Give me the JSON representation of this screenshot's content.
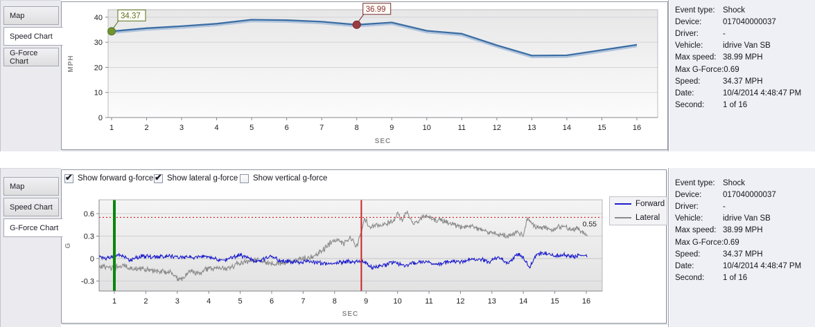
{
  "tabs": [
    "Map",
    "Speed Chart",
    "G-Force Chart"
  ],
  "top_panel": {
    "selected_tab": "Speed Chart"
  },
  "bottom_panel": {
    "selected_tab": "G-Force Chart"
  },
  "event_info": {
    "rows": [
      {
        "label": "Event type:",
        "value": "Shock"
      },
      {
        "label": "Device:",
        "value": "017040000037"
      },
      {
        "label": "Driver:",
        "value": "-"
      },
      {
        "label": "Vehicle:",
        "value": "idrive Van SB"
      },
      {
        "label": "Max speed:",
        "value": "38.99 MPH"
      },
      {
        "label": "Max G-Force:",
        "value": "0.69"
      },
      {
        "label": "Speed:",
        "value": "34.37 MPH"
      },
      {
        "label": "Date:",
        "value": "10/4/2014 4:48:47 PM"
      },
      {
        "label": "Second:",
        "value": "1 of 16"
      }
    ]
  },
  "gforce_controls": {
    "checkboxes": [
      {
        "label": "Show forward g-force",
        "checked": true
      },
      {
        "label": "Show lateral g-force",
        "checked": true
      },
      {
        "label": "Show vertical g-force",
        "checked": false
      }
    ]
  },
  "chart_data": [
    {
      "type": "line",
      "name": "speed-chart",
      "xlabel": "SEC",
      "ylabel": "MPH",
      "x": [
        1,
        2,
        3,
        4,
        5,
        6,
        7,
        8,
        9,
        10,
        11,
        12,
        13,
        14,
        15,
        16
      ],
      "values": [
        34.37,
        35.6,
        36.4,
        37.4,
        38.99,
        38.8,
        38.2,
        36.99,
        37.9,
        34.6,
        33.4,
        28.8,
        24.7,
        24.8,
        26.9,
        29.0
      ],
      "yticks": [
        0,
        10,
        20,
        30,
        40
      ],
      "ylim": [
        0,
        43
      ],
      "grid": "horizontal",
      "line_color": "#3a6da3",
      "shadow_color": "#a7bdd9",
      "annotations": [
        {
          "x": 1,
          "y": 34.37,
          "label": "34.37",
          "dot_color": "#71942f",
          "edge_color": "#55711f",
          "text_color": "#5d6e22"
        },
        {
          "x": 8,
          "y": 36.99,
          "label": "36.99",
          "dot_color": "#9e3a42",
          "edge_color": "#73262d",
          "text_color": "#8c3038"
        }
      ]
    },
    {
      "type": "line",
      "name": "gforce-chart",
      "xlabel": "SEC",
      "ylabel": "G",
      "xticks": [
        1,
        2,
        3,
        4,
        5,
        6,
        7,
        8,
        9,
        10,
        11,
        12,
        13,
        14,
        15,
        16
      ],
      "yticks": [
        -0.3,
        0,
        0.3,
        0.6
      ],
      "ylim": [
        -0.43,
        0.79
      ],
      "xlim": [
        0.52,
        16.5
      ],
      "grid": "horizontal",
      "threshold": {
        "value": 0.55,
        "label": "0.55",
        "color": "#cc0000"
      },
      "time_markers": [
        {
          "x": 1.0,
          "color": "#0a860a",
          "width": 4,
          "name": "current-second-marker"
        },
        {
          "x": 8.85,
          "color": "#cc2222",
          "width": 2,
          "name": "event-marker"
        }
      ],
      "legend": {
        "position": "right",
        "entries": [
          "Forward",
          "Lateral"
        ]
      },
      "series": [
        {
          "name": "Forward",
          "color": "#1c1ccc",
          "noise_amp": 0.035,
          "seed": 7,
          "keypoints": [
            [
              0.52,
              0.03
            ],
            [
              0.8,
              0
            ],
            [
              1,
              0.04
            ],
            [
              1.2,
              0.05
            ],
            [
              1.5,
              -0.02
            ],
            [
              1.8,
              0.02
            ],
            [
              2,
              0.03
            ],
            [
              2.3,
              0.02
            ],
            [
              2.6,
              0.03
            ],
            [
              3,
              0.02
            ],
            [
              3.3,
              0.03
            ],
            [
              3.6,
              0.02
            ],
            [
              3.9,
              0.04
            ],
            [
              4.2,
              0
            ],
            [
              4.5,
              -0.03
            ],
            [
              4.8,
              0.03
            ],
            [
              5,
              0.04
            ],
            [
              5.2,
              0.02
            ],
            [
              5.5,
              -0.04
            ],
            [
              5.8,
              0
            ],
            [
              6,
              0.03
            ],
            [
              6.2,
              -0.02
            ],
            [
              6.5,
              -0.04
            ],
            [
              6.8,
              -0.05
            ],
            [
              7,
              -0.04
            ],
            [
              7.3,
              -0.05
            ],
            [
              7.6,
              -0.06
            ],
            [
              7.9,
              -0.07
            ],
            [
              8.2,
              -0.05
            ],
            [
              8.5,
              -0.04
            ],
            [
              8.8,
              -0.03
            ],
            [
              9,
              -0.06
            ],
            [
              9.2,
              -0.13
            ],
            [
              9.5,
              -0.1
            ],
            [
              9.8,
              -0.05
            ],
            [
              10,
              -0.06
            ],
            [
              10.3,
              -0.09
            ],
            [
              10.6,
              -0.05
            ],
            [
              10.9,
              -0.04
            ],
            [
              11.2,
              -0.08
            ],
            [
              11.5,
              -0.05
            ],
            [
              11.8,
              -0.03
            ],
            [
              12,
              -0.04
            ],
            [
              12.3,
              -0.02
            ],
            [
              12.6,
              0
            ],
            [
              12.9,
              -0.05
            ],
            [
              13.2,
              0.02
            ],
            [
              13.5,
              -0.06
            ],
            [
              13.8,
              0.06
            ],
            [
              14,
              0.02
            ],
            [
              14.2,
              -0.12
            ],
            [
              14.4,
              0.05
            ],
            [
              14.7,
              0.07
            ],
            [
              15,
              0.03
            ],
            [
              15.3,
              0.05
            ],
            [
              15.6,
              0.02
            ],
            [
              15.8,
              0.05
            ],
            [
              16.05,
              0.04
            ]
          ]
        },
        {
          "name": "Lateral",
          "color": "#8a8a8a",
          "noise_amp": 0.045,
          "seed": 13,
          "keypoints": [
            [
              0.52,
              -0.1
            ],
            [
              0.8,
              -0.13
            ],
            [
              1,
              -0.12
            ],
            [
              1.3,
              -0.1
            ],
            [
              1.6,
              -0.14
            ],
            [
              1.9,
              -0.13
            ],
            [
              2.2,
              -0.16
            ],
            [
              2.5,
              -0.17
            ],
            [
              2.8,
              -0.18
            ],
            [
              3,
              -0.28
            ],
            [
              3.2,
              -0.26
            ],
            [
              3.4,
              -0.15
            ],
            [
              3.6,
              -0.21
            ],
            [
              3.8,
              -0.18
            ],
            [
              4,
              -0.13
            ],
            [
              4.3,
              -0.12
            ],
            [
              4.6,
              -0.13
            ],
            [
              4.9,
              -0.07
            ],
            [
              5.2,
              -0.04
            ],
            [
              5.5,
              -0.03
            ],
            [
              5.8,
              -0.05
            ],
            [
              6.1,
              -0.07
            ],
            [
              6.4,
              -0.06
            ],
            [
              6.7,
              -0.03
            ],
            [
              7,
              0
            ],
            [
              7.3,
              0.02
            ],
            [
              7.6,
              0.1
            ],
            [
              7.9,
              0.22
            ],
            [
              8.1,
              0.25
            ],
            [
              8.3,
              0.2
            ],
            [
              8.5,
              0.28
            ],
            [
              8.7,
              0.16
            ],
            [
              8.85,
              0.35
            ],
            [
              8.95,
              0.55
            ],
            [
              9.1,
              0.42
            ],
            [
              9.3,
              0.45
            ],
            [
              9.5,
              0.43
            ],
            [
              9.7,
              0.48
            ],
            [
              9.9,
              0.5
            ],
            [
              10,
              0.62
            ],
            [
              10.15,
              0.5
            ],
            [
              10.3,
              0.65
            ],
            [
              10.5,
              0.45
            ],
            [
              10.7,
              0.52
            ],
            [
              10.85,
              0.58
            ],
            [
              11,
              0.55
            ],
            [
              11.2,
              0.5
            ],
            [
              11.4,
              0.52
            ],
            [
              11.6,
              0.48
            ],
            [
              11.8,
              0.45
            ],
            [
              12,
              0.42
            ],
            [
              12.3,
              0.44
            ],
            [
              12.6,
              0.4
            ],
            [
              12.9,
              0.35
            ],
            [
              13.2,
              0.32
            ],
            [
              13.5,
              0.3
            ],
            [
              13.8,
              0.35
            ],
            [
              14,
              0.32
            ],
            [
              14.15,
              0.55
            ],
            [
              14.3,
              0.45
            ],
            [
              14.5,
              0.4
            ],
            [
              14.7,
              0.42
            ],
            [
              14.9,
              0.38
            ],
            [
              15.1,
              0.42
            ],
            [
              15.3,
              0.44
            ],
            [
              15.5,
              0.38
            ],
            [
              15.7,
              0.4
            ],
            [
              15.9,
              0.35
            ],
            [
              16.05,
              0.3
            ]
          ]
        }
      ]
    }
  ]
}
